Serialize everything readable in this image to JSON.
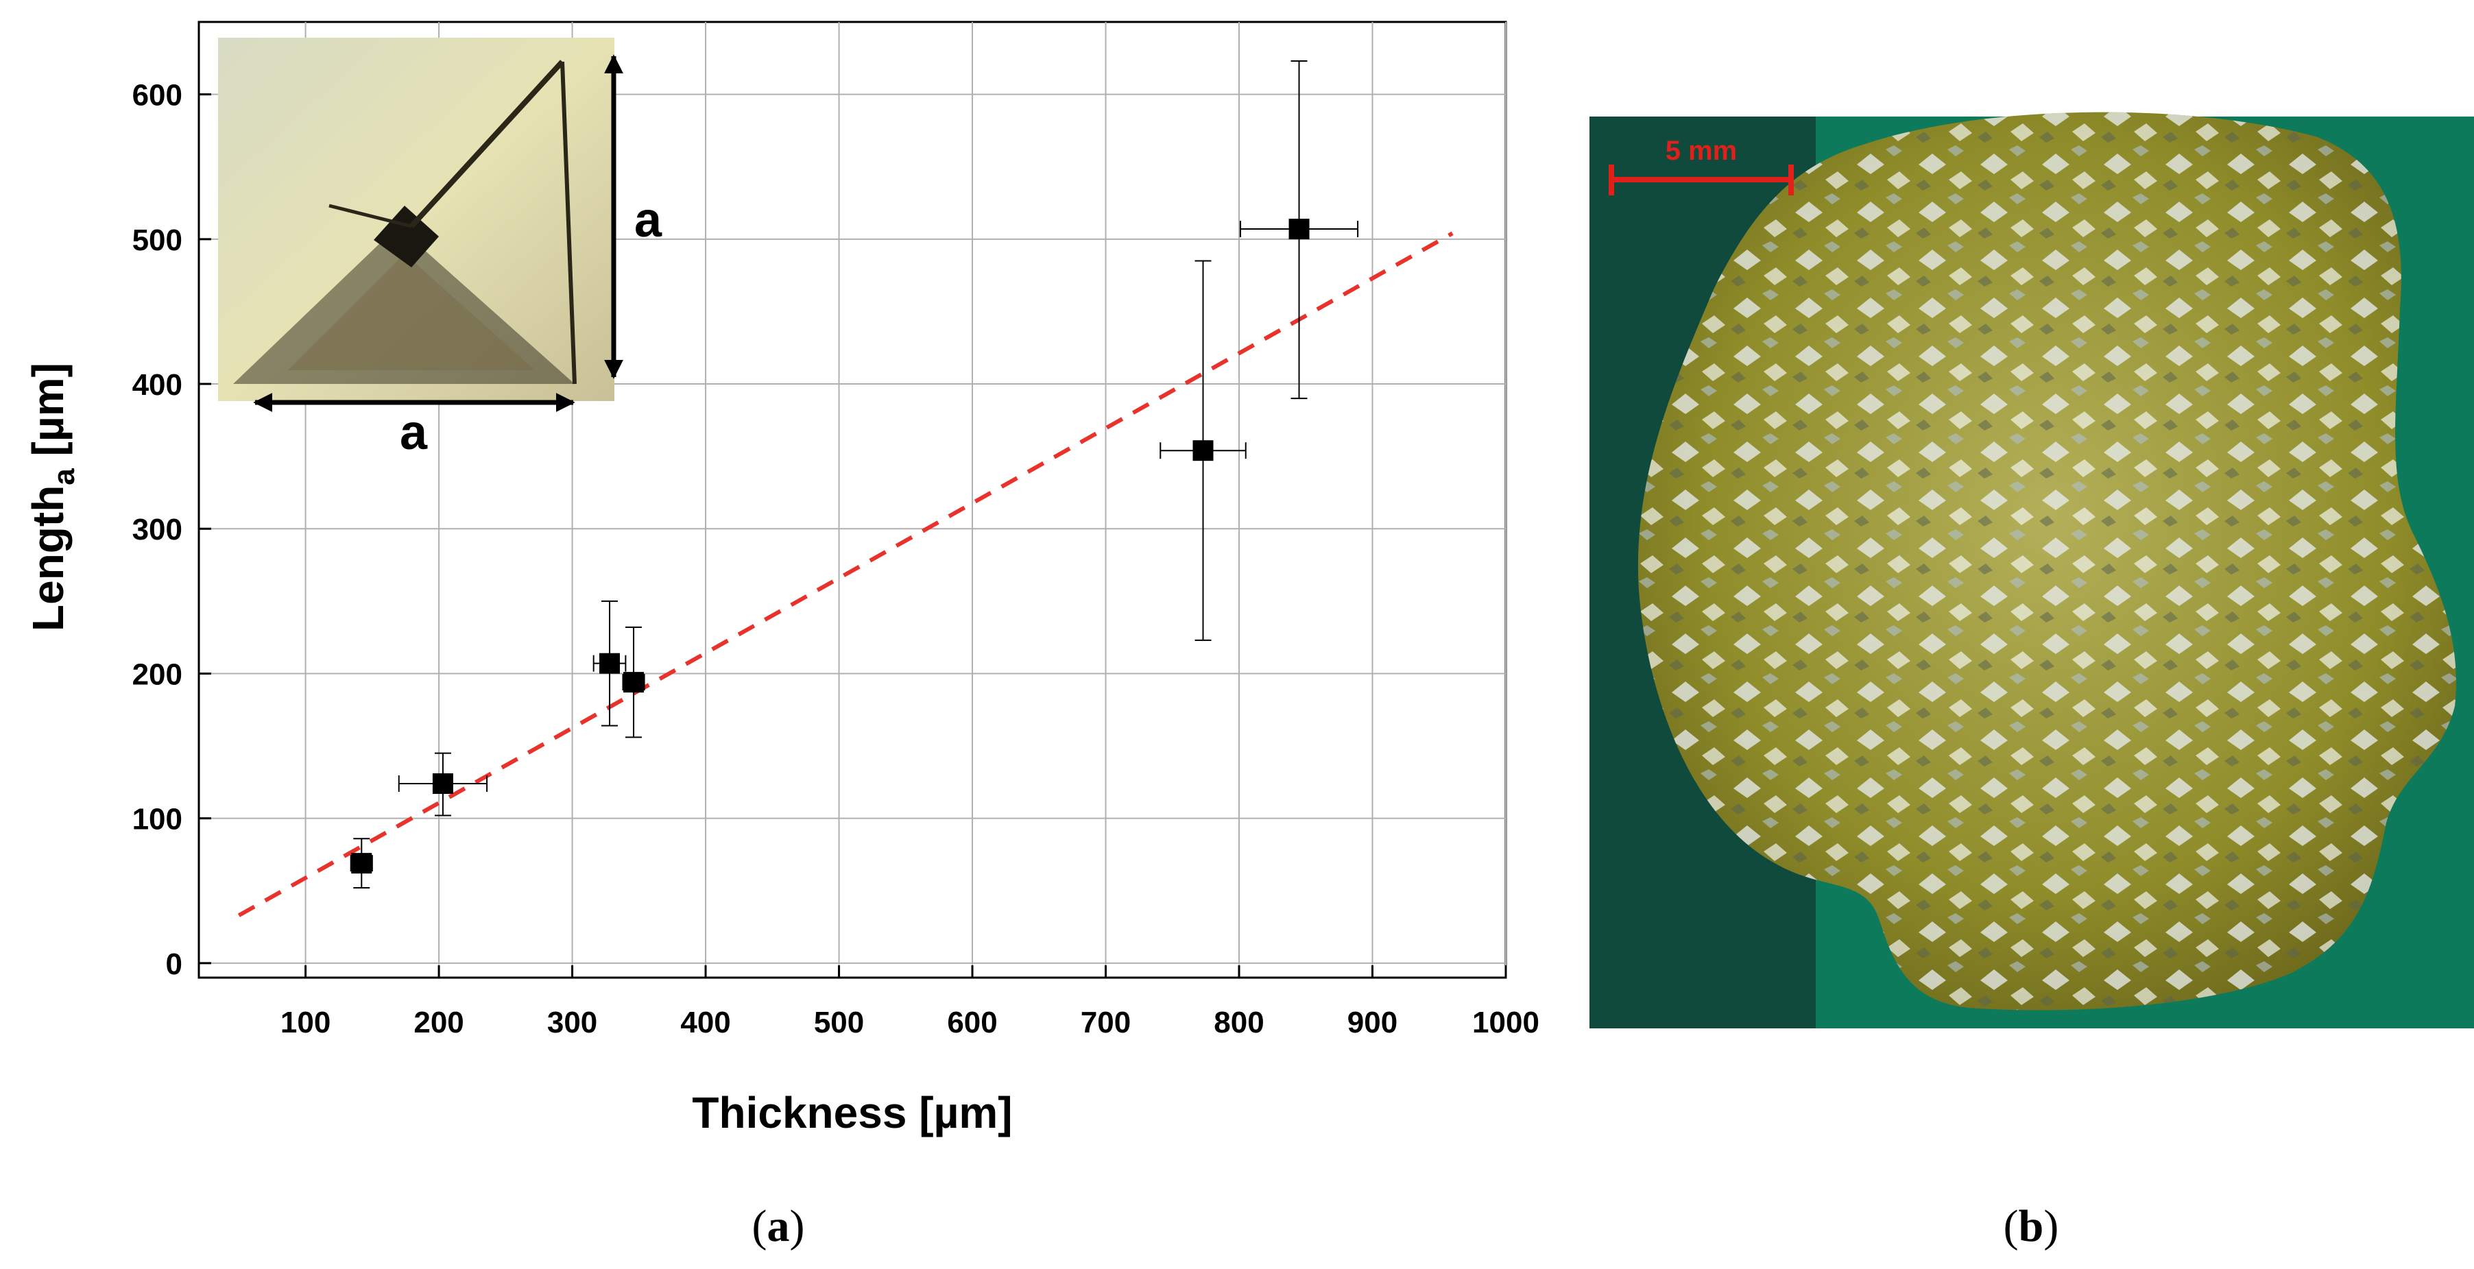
{
  "panel_a": {
    "caption_prefix": "(",
    "caption_letter": "a",
    "caption_suffix": ")",
    "inset": {
      "dimension_label_right": "a",
      "dimension_label_bottom": "a"
    }
  },
  "panel_b": {
    "caption_prefix": "(",
    "caption_letter": "b",
    "caption_suffix": ")",
    "scale_bar_label": "5 mm"
  },
  "colors": {
    "fit_line": "#e8322b",
    "grid": "#b0b0b0",
    "marker": "#000000",
    "scale_bar": "#e0201a",
    "crystal_background": "#0d7a5c",
    "crystal": "#9a9a22"
  },
  "chart_data": {
    "type": "scatter",
    "xlabel": "Thickness [µm]",
    "ylabel_main": "Length",
    "ylabel_sub": "a",
    "ylabel_unit": " [µm]",
    "xlim": [
      20,
      1000
    ],
    "ylim": [
      -10,
      650
    ],
    "xticks": [
      100,
      200,
      300,
      400,
      500,
      600,
      700,
      800,
      900,
      1000
    ],
    "yticks": [
      0,
      100,
      200,
      300,
      400,
      500,
      600
    ],
    "grid": true,
    "points": [
      {
        "x": 142,
        "y": 69,
        "xerr": 8,
        "yerr_low": 17,
        "yerr_high": 17
      },
      {
        "x": 203,
        "y": 124,
        "xerr": 33,
        "yerr_low": 22,
        "yerr_high": 21
      },
      {
        "x": 328,
        "y": 207,
        "xerr": 12,
        "yerr_low": 43,
        "yerr_high": 43
      },
      {
        "x": 346,
        "y": 194,
        "xerr": 8,
        "yerr_low": 38,
        "yerr_high": 38
      },
      {
        "x": 773,
        "y": 354,
        "xerr": 32,
        "yerr_low": 131,
        "yerr_high": 131
      },
      {
        "x": 845,
        "y": 507,
        "xerr": 44,
        "yerr_low": 117,
        "yerr_high": 116
      }
    ],
    "fit_line": {
      "style": "dashed",
      "x": [
        50,
        960
      ],
      "y": [
        33,
        504
      ]
    }
  }
}
